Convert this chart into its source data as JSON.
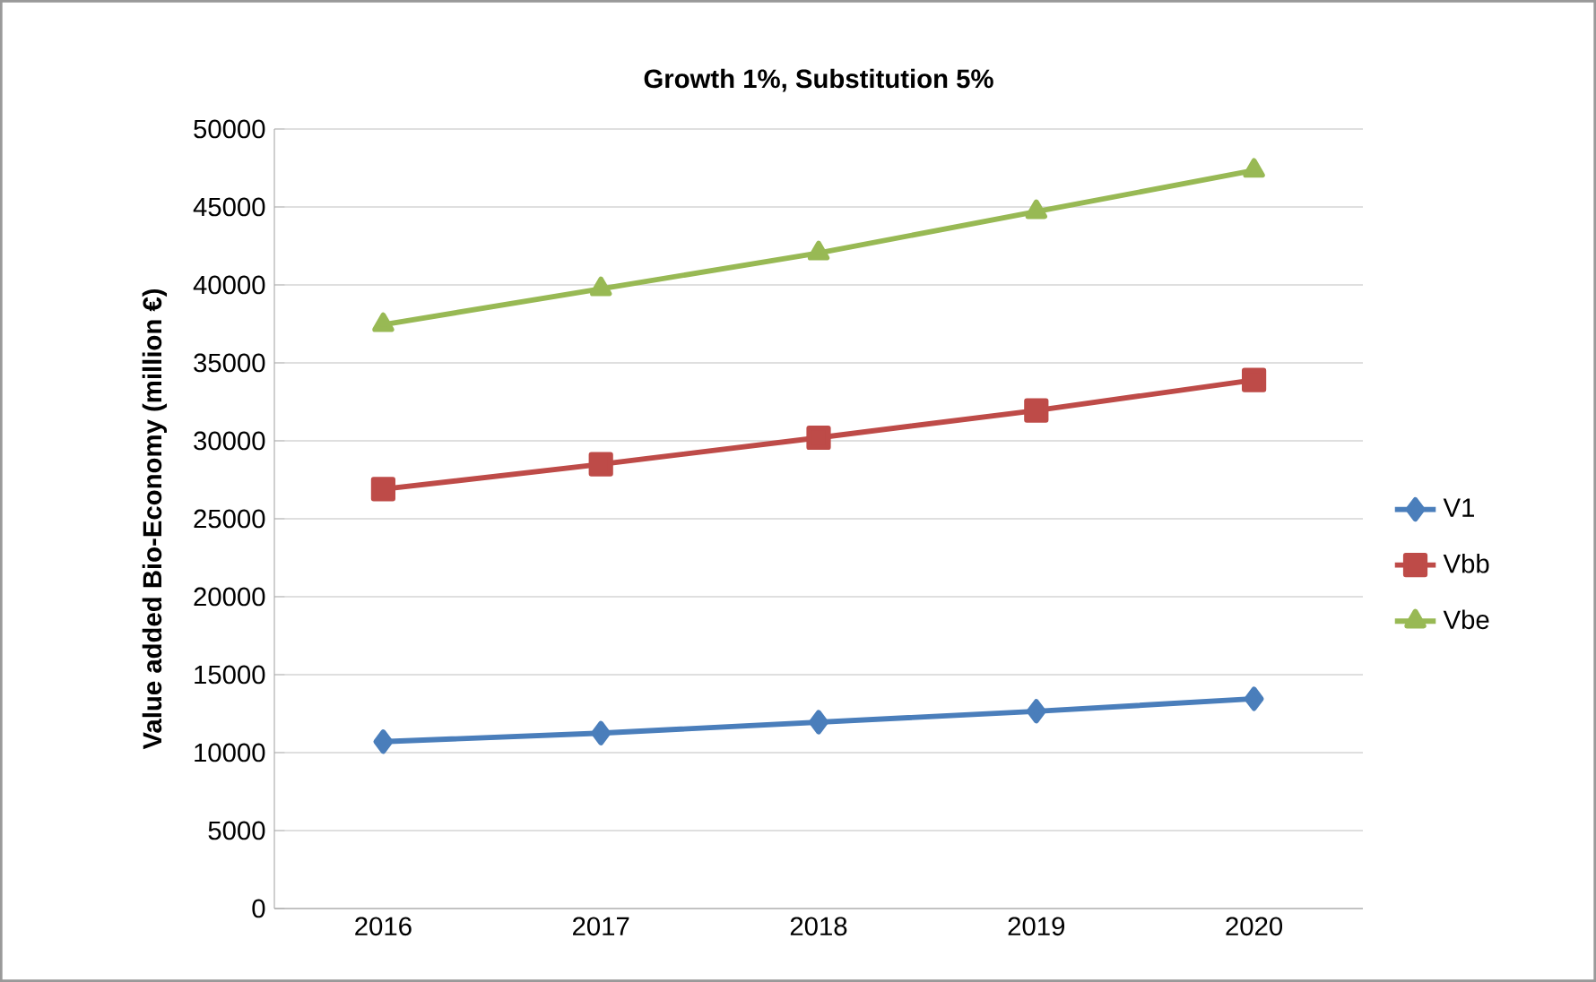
{
  "chart_data": {
    "type": "line",
    "title": "Growth 1%, Substitution 5%",
    "ylabel": "Value added Bio-Economy (million €)",
    "categories": [
      "2016",
      "2017",
      "2018",
      "2019",
      "2020"
    ],
    "series": [
      {
        "name": "V1",
        "color": "#4a7ebb",
        "marker": "diamond",
        "values": [
          10700,
          11250,
          11950,
          12650,
          13450
        ]
      },
      {
        "name": "Vbb",
        "color": "#be4b48",
        "marker": "square",
        "values": [
          26900,
          28500,
          30200,
          31950,
          33900
        ]
      },
      {
        "name": "Vbe",
        "color": "#98b954",
        "marker": "triangle",
        "values": [
          37450,
          39750,
          42050,
          44700,
          47350
        ]
      }
    ],
    "ylim": [
      0,
      50000
    ],
    "yticks": [
      0,
      5000,
      10000,
      15000,
      20000,
      25000,
      30000,
      35000,
      40000,
      45000,
      50000
    ],
    "grid": "y",
    "legend": "right",
    "line_style": "solid"
  }
}
